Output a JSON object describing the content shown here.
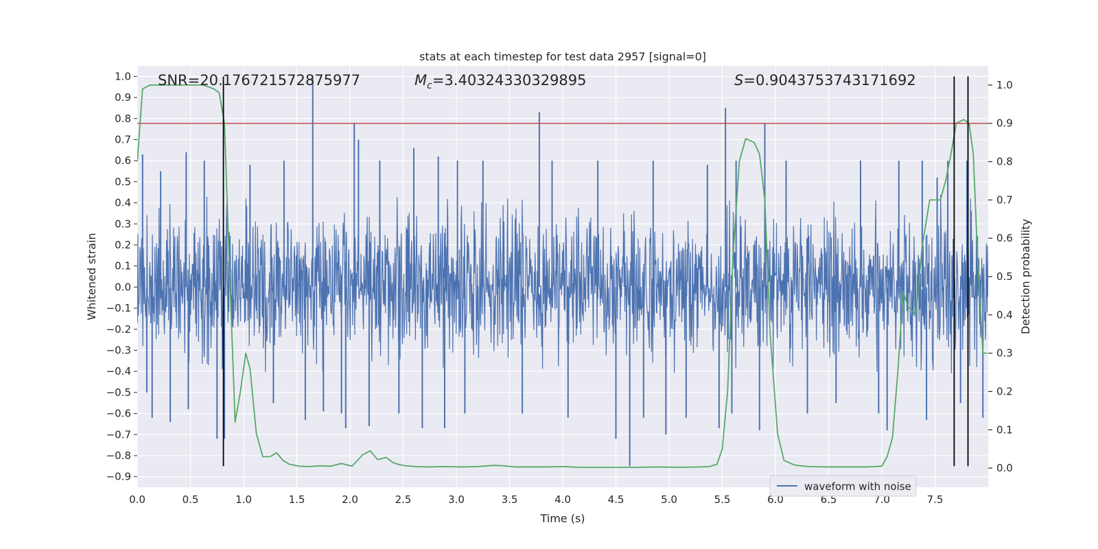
{
  "chart_data": {
    "type": "line",
    "title": "stats at each timestep for test data 2957 [signal=0]",
    "xlabel": "Time (s)",
    "ylabel": "Whitened strain",
    "y2label": "Detection probability",
    "xlim": [
      0.0,
      8.0
    ],
    "ylim": [
      -0.95,
      1.05
    ],
    "y2lim": [
      -0.05,
      1.05
    ],
    "x_ticks": [
      0.0,
      0.5,
      1.0,
      1.5,
      2.0,
      2.5,
      3.0,
      3.5,
      4.0,
      4.5,
      5.0,
      5.5,
      6.0,
      6.5,
      7.0,
      7.5
    ],
    "x_tick_labels": [
      "0.0",
      "0.5",
      "1.0",
      "1.5",
      "2.0",
      "2.5",
      "3.0",
      "3.5",
      "4.0",
      "4.5",
      "5.0",
      "5.5",
      "6.0",
      "6.5",
      "7.0",
      "7.5"
    ],
    "y_ticks": [
      1.0,
      0.9,
      0.8,
      0.7,
      0.6,
      0.5,
      0.4,
      0.3,
      0.2,
      0.1,
      0.0,
      -0.1,
      -0.2,
      -0.3,
      -0.4,
      -0.5,
      -0.6,
      -0.7,
      -0.8,
      -0.9
    ],
    "y_tick_labels": [
      "1.0",
      "0.9",
      "0.8",
      "0.7",
      "0.6",
      "0.5",
      "0.4",
      "0.3",
      "0.2",
      "0.1",
      "0.0",
      "−0.1",
      "−0.2",
      "−0.3",
      "−0.4",
      "−0.5",
      "−0.6",
      "−0.7",
      "−0.8",
      "−0.9"
    ],
    "y2_ticks": [
      1.0,
      0.9,
      0.8,
      0.7,
      0.6,
      0.5,
      0.4,
      0.3,
      0.2,
      0.1,
      0.0
    ],
    "y2_tick_labels": [
      "1.0",
      "0.9",
      "0.8",
      "0.7",
      "0.6",
      "0.5",
      "0.4",
      "0.3",
      "0.2",
      "0.1",
      "0.0"
    ],
    "grid": true,
    "legend": {
      "entries": [
        "waveform with noise"
      ],
      "placement": "lower-right"
    },
    "annotations": {
      "snr": "SNR=20.176721572875977",
      "mc_symbol": "M",
      "mc_sub": "c",
      "mc_value": "=3.40324330329895",
      "s_symbol": "S",
      "s_value": "=0.9043753743171692"
    },
    "threshold_line": {
      "name": "threshold",
      "y2": 0.9,
      "color": "#c44e52"
    },
    "vertical_lines": {
      "color": "#000000",
      "x": [
        0.81,
        7.68,
        7.81
      ],
      "y_range": [
        -0.85,
        1.0
      ]
    },
    "colors": {
      "waveform": "#4c72b0",
      "probability": "#55a868",
      "background": "#eaeaf2",
      "grid": "#ffffff"
    },
    "series": [
      {
        "name": "waveform with noise",
        "kind": "noise",
        "samples": 2048,
        "typical_range": [
          -0.42,
          0.44
        ],
        "spikes": [
          [
            0.05,
            0.63
          ],
          [
            0.09,
            -0.5
          ],
          [
            0.14,
            -0.62
          ],
          [
            0.22,
            0.55
          ],
          [
            0.31,
            -0.64
          ],
          [
            0.46,
            0.64
          ],
          [
            0.48,
            -0.58
          ],
          [
            0.63,
            0.6
          ],
          [
            0.75,
            -0.72
          ],
          [
            0.82,
            -0.72
          ],
          [
            1.06,
            0.58
          ],
          [
            1.28,
            -0.55
          ],
          [
            1.38,
            0.6
          ],
          [
            1.58,
            -0.63
          ],
          [
            1.65,
            1.0
          ],
          [
            1.75,
            -0.59
          ],
          [
            1.92,
            -0.6
          ],
          [
            1.96,
            -0.67
          ],
          [
            2.04,
            0.78
          ],
          [
            2.08,
            0.7
          ],
          [
            2.18,
            -0.66
          ],
          [
            2.28,
            0.6
          ],
          [
            2.46,
            -0.6
          ],
          [
            2.6,
            0.66
          ],
          [
            2.68,
            -0.67
          ],
          [
            2.83,
            0.62
          ],
          [
            2.89,
            -0.67
          ],
          [
            3.01,
            0.6
          ],
          [
            3.08,
            -0.6
          ],
          [
            3.25,
            0.6
          ],
          [
            3.62,
            -0.6
          ],
          [
            3.78,
            0.83
          ],
          [
            3.9,
            0.6
          ],
          [
            4.05,
            -0.62
          ],
          [
            4.33,
            0.6
          ],
          [
            4.5,
            -0.72
          ],
          [
            4.63,
            -0.85
          ],
          [
            4.76,
            -0.62
          ],
          [
            4.85,
            0.6
          ],
          [
            4.97,
            -0.7
          ],
          [
            5.16,
            -0.62
          ],
          [
            5.36,
            0.58
          ],
          [
            5.47,
            -0.67
          ],
          [
            5.53,
            0.85
          ],
          [
            5.59,
            -0.6
          ],
          [
            5.63,
            0.6
          ],
          [
            5.85,
            -0.68
          ],
          [
            5.9,
            0.78
          ],
          [
            6.1,
            0.6
          ],
          [
            6.3,
            -0.6
          ],
          [
            6.57,
            -0.55
          ],
          [
            6.8,
            0.6
          ],
          [
            6.97,
            -0.6
          ],
          [
            7.05,
            -0.68
          ],
          [
            7.16,
            0.6
          ],
          [
            7.38,
            0.6
          ],
          [
            7.42,
            -0.63
          ],
          [
            7.52,
            0.52
          ],
          [
            7.62,
            0.6
          ],
          [
            7.74,
            -0.55
          ],
          [
            7.8,
            0.6
          ],
          [
            7.95,
            -0.62
          ]
        ]
      },
      {
        "name": "detection probability",
        "axis": "right",
        "x": [
          0.0,
          0.05,
          0.12,
          0.25,
          0.4,
          0.55,
          0.62,
          0.72,
          0.77,
          0.82,
          0.87,
          0.92,
          0.97,
          1.02,
          1.06,
          1.12,
          1.18,
          1.25,
          1.31,
          1.37,
          1.43,
          1.52,
          1.62,
          1.72,
          1.82,
          1.92,
          2.02,
          2.12,
          2.19,
          2.26,
          2.34,
          2.4,
          2.45,
          2.52,
          2.62,
          2.75,
          2.9,
          3.05,
          3.2,
          3.35,
          3.45,
          3.55,
          3.7,
          3.85,
          4.0,
          4.15,
          4.3,
          4.5,
          4.7,
          4.9,
          5.1,
          5.3,
          5.38,
          5.45,
          5.5,
          5.55,
          5.6,
          5.66,
          5.72,
          5.8,
          5.85,
          5.9,
          5.95,
          6.02,
          6.08,
          6.18,
          6.3,
          6.5,
          6.7,
          6.85,
          6.93,
          7.0,
          7.05,
          7.1,
          7.15,
          7.2,
          7.25,
          7.32,
          7.38,
          7.45,
          7.55,
          7.6,
          7.65,
          7.7,
          7.77,
          7.82,
          7.86,
          7.9,
          7.95,
          7.99
        ],
        "values": [
          0.8,
          0.99,
          1.0,
          1.0,
          1.0,
          1.0,
          1.0,
          0.99,
          0.98,
          0.9,
          0.5,
          0.12,
          0.2,
          0.3,
          0.26,
          0.09,
          0.03,
          0.03,
          0.04,
          0.02,
          0.01,
          0.005,
          0.004,
          0.006,
          0.005,
          0.012,
          0.005,
          0.035,
          0.045,
          0.022,
          0.028,
          0.015,
          0.01,
          0.006,
          0.004,
          0.003,
          0.004,
          0.003,
          0.004,
          0.007,
          0.006,
          0.003,
          0.003,
          0.003,
          0.004,
          0.002,
          0.002,
          0.002,
          0.002,
          0.003,
          0.002,
          0.003,
          0.004,
          0.01,
          0.05,
          0.2,
          0.55,
          0.8,
          0.86,
          0.85,
          0.82,
          0.7,
          0.35,
          0.09,
          0.02,
          0.008,
          0.004,
          0.003,
          0.003,
          0.003,
          0.004,
          0.005,
          0.03,
          0.08,
          0.25,
          0.46,
          0.42,
          0.4,
          0.58,
          0.7,
          0.7,
          0.75,
          0.82,
          0.9,
          0.91,
          0.9,
          0.82,
          0.55,
          0.3,
          0.3
        ]
      }
    ]
  }
}
